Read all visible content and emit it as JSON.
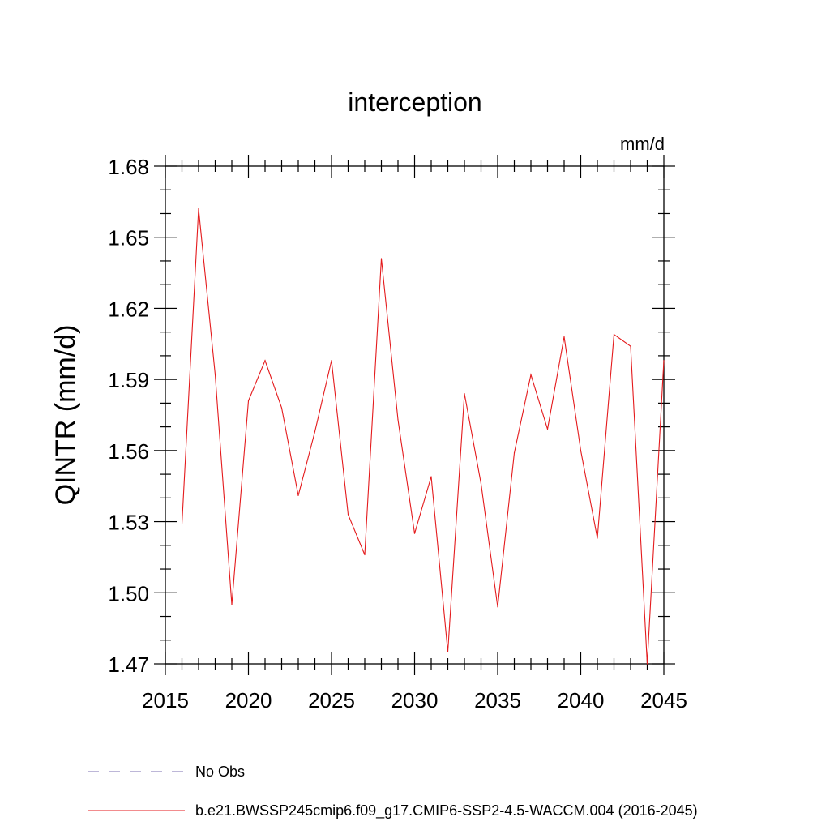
{
  "chart_data": {
    "type": "line",
    "title": "interception",
    "units_label": "mm/d",
    "ylabel": "QINTR  (mm/d)",
    "xlabel": "",
    "xlim": [
      2015,
      2045
    ],
    "ylim": [
      1.47,
      1.68
    ],
    "xticks": [
      2015,
      2020,
      2025,
      2030,
      2035,
      2040,
      2045
    ],
    "xtick_labels": [
      "2015",
      "2020",
      "2025",
      "2030",
      "2035",
      "2040",
      "2045"
    ],
    "yticks": [
      1.47,
      1.5,
      1.53,
      1.56,
      1.59,
      1.62,
      1.65,
      1.68
    ],
    "ytick_labels": [
      "1.47",
      "1.50",
      "1.53",
      "1.56",
      "1.59",
      "1.62",
      "1.65",
      "1.68"
    ],
    "grid": false,
    "legend_position": "bottom",
    "series": [
      {
        "name": "b.e21.BWSSP245cmip6.f09_g17.CMIP6-SSP2-4.5-WACCM.004 (2016-2045)",
        "color": "#e41a1c",
        "style": "solid",
        "x": [
          2016,
          2017,
          2018,
          2019,
          2020,
          2021,
          2022,
          2023,
          2024,
          2025,
          2026,
          2027,
          2028,
          2029,
          2030,
          2031,
          2032,
          2033,
          2034,
          2035,
          2036,
          2037,
          2038,
          2039,
          2040,
          2041,
          2042,
          2043,
          2044,
          2045
        ],
        "y": [
          1.529,
          1.662,
          1.592,
          1.495,
          1.581,
          1.598,
          1.578,
          1.541,
          1.568,
          1.598,
          1.533,
          1.516,
          1.641,
          1.573,
          1.525,
          1.549,
          1.475,
          1.584,
          1.546,
          1.494,
          1.559,
          1.592,
          1.569,
          1.608,
          1.56,
          1.523,
          1.609,
          1.604,
          1.47,
          1.598
        ]
      }
    ],
    "legend": [
      {
        "label": "No Obs",
        "color": "#7b6fb0",
        "style": "dashed"
      },
      {
        "label": "b.e21.BWSSP245cmip6.f09_g17.CMIP6-SSP2-4.5-WACCM.004 (2016-2045)",
        "color": "#e41a1c",
        "style": "solid"
      }
    ]
  }
}
